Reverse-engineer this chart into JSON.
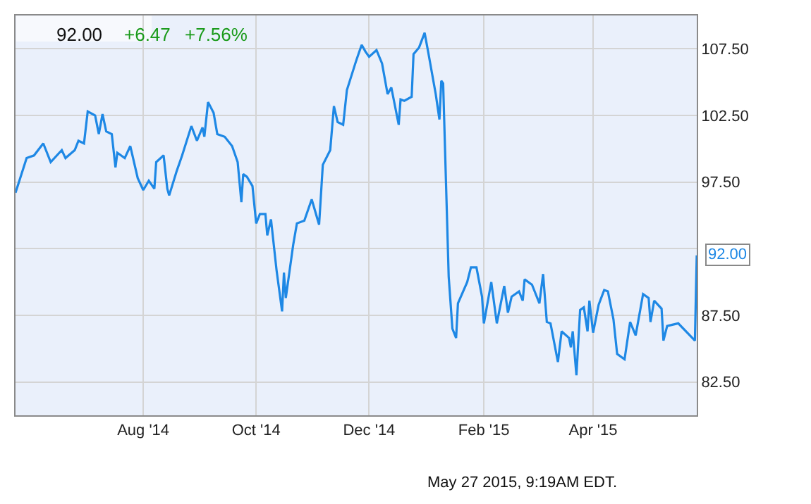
{
  "chart_data": {
    "type": "line",
    "title": "92.00",
    "annotations": [
      "+6.47",
      "+7.56%",
      "May 27 2015, 9:19AM EDT.",
      {
        "text": "92.00",
        "x": "2015-05-27",
        "y": 92.0
      }
    ],
    "x": [
      "2014-05-24",
      "2014-05-30",
      "2014-06-03",
      "2014-06-08",
      "2014-06-12",
      "2014-06-18",
      "2014-06-20",
      "2014-06-25",
      "2014-06-27",
      "2014-06-30",
      "2014-07-02",
      "2014-07-06",
      "2014-07-08",
      "2014-07-10",
      "2014-07-12",
      "2014-07-15",
      "2014-07-17",
      "2014-07-18",
      "2014-07-22",
      "2014-07-25",
      "2014-07-29",
      "2014-08-01",
      "2014-08-04",
      "2014-08-07",
      "2014-08-08",
      "2014-08-12",
      "2014-08-14",
      "2014-08-15",
      "2014-08-19",
      "2014-08-22",
      "2014-08-27",
      "2014-08-30",
      "2014-09-02",
      "2014-09-03",
      "2014-09-05",
      "2014-09-08",
      "2014-09-10",
      "2014-09-14",
      "2014-09-18",
      "2014-09-21",
      "2014-09-23",
      "2014-09-24",
      "2014-09-26",
      "2014-09-29",
      "2014-10-01",
      "2014-10-03",
      "2014-10-06",
      "2014-10-07",
      "2014-10-09",
      "2014-10-12",
      "2014-10-15",
      "2014-10-16",
      "2014-10-17",
      "2014-10-21",
      "2014-10-23",
      "2014-10-27",
      "2014-10-31",
      "2014-11-04",
      "2014-11-06",
      "2014-11-10",
      "2014-11-12",
      "2014-11-14",
      "2014-11-17",
      "2014-11-19",
      "2014-11-24",
      "2014-11-27",
      "2014-11-29",
      "2014-12-01",
      "2014-12-05",
      "2014-12-08",
      "2014-12-11",
      "2014-12-13",
      "2014-12-17",
      "2014-12-18",
      "2014-12-20",
      "2014-12-24",
      "2014-12-25",
      "2014-12-28",
      "2014-12-31",
      "2015-01-02",
      "2015-01-06",
      "2015-01-08",
      "2015-01-09",
      "2015-01-10",
      "2015-01-13",
      "2015-01-15",
      "2015-01-17",
      "2015-01-18",
      "2015-01-23",
      "2015-01-25",
      "2015-01-28",
      "2015-01-31",
      "2015-02-01",
      "2015-02-05",
      "2015-02-08",
      "2015-02-12",
      "2015-02-14",
      "2015-02-16",
      "2015-02-20",
      "2015-02-22",
      "2015-02-23",
      "2015-02-27",
      "2015-03-03",
      "2015-03-05",
      "2015-03-07",
      "2015-03-09",
      "2015-03-13",
      "2015-03-15",
      "2015-03-19",
      "2015-03-20",
      "2015-03-21",
      "2015-03-23",
      "2015-03-25",
      "2015-03-27",
      "2015-03-29",
      "2015-03-30",
      "2015-04-01",
      "2015-04-04",
      "2015-04-07",
      "2015-04-09",
      "2015-04-12",
      "2015-04-14",
      "2015-04-18",
      "2015-04-21",
      "2015-04-24",
      "2015-04-28",
      "2015-05-01",
      "2015-05-02",
      "2015-05-04",
      "2015-05-08",
      "2015-05-09",
      "2015-05-11",
      "2015-05-17",
      "2015-05-26",
      "2015-05-27"
    ],
    "series": [
      {
        "color": "#1e88e5",
        "values": [
          96.7,
          99.3,
          99.5,
          100.4,
          99.0,
          99.9,
          99.3,
          99.9,
          100.6,
          100.4,
          102.8,
          102.5,
          101.1,
          102.6,
          101.3,
          101.1,
          98.6,
          99.7,
          99.3,
          100.2,
          97.8,
          96.9,
          97.6,
          97.0,
          99.0,
          99.5,
          97.0,
          96.5,
          98.3,
          99.5,
          101.7,
          100.6,
          101.6,
          100.9,
          103.5,
          102.7,
          101.1,
          100.9,
          100.2,
          99.0,
          96.0,
          98.1,
          97.9,
          97.2,
          94.4,
          95.1,
          95.1,
          93.5,
          94.7,
          90.9,
          87.8,
          90.7,
          88.8,
          92.8,
          94.4,
          94.6,
          96.2,
          94.3,
          98.8,
          99.9,
          103.2,
          102.0,
          101.8,
          104.4,
          106.6,
          107.8,
          107.3,
          106.9,
          107.4,
          106.4,
          104.1,
          104.6,
          101.8,
          103.7,
          103.6,
          103.9,
          107.1,
          107.6,
          108.7,
          107.2,
          104.1,
          102.2,
          105.1,
          104.9,
          90.4,
          86.5,
          85.8,
          88.4,
          90.0,
          91.1,
          91.1,
          88.9,
          86.9,
          90.0,
          86.9,
          89.7,
          87.7,
          88.9,
          89.3,
          88.6,
          90.2,
          89.8,
          88.4,
          90.6,
          87.0,
          86.9,
          84.0,
          86.3,
          85.8,
          85.1,
          86.3,
          83.0,
          87.9,
          88.1,
          86.3,
          88.6,
          86.2,
          88.3,
          89.4,
          89.3,
          87.2,
          84.6,
          84.2,
          87.0,
          86.0,
          89.1,
          88.8,
          87.0,
          88.6,
          88.0,
          85.6,
          86.7,
          86.9,
          85.6,
          92.0
        ]
      }
    ],
    "xlim": [
      "2014-05-24",
      "2015-05-27"
    ],
    "xticks": [
      {
        "value": "2014-08-01",
        "label": "Aug '14"
      },
      {
        "value": "2014-10-01",
        "label": "Oct '14"
      },
      {
        "value": "2014-12-01",
        "label": "Dec '14"
      },
      {
        "value": "2015-02-01",
        "label": "Feb '15"
      },
      {
        "value": "2015-04-01",
        "label": "Apr '15"
      }
    ],
    "ylim": [
      80,
      110
    ],
    "yticks": [
      {
        "value": 82.5,
        "label": "82.50"
      },
      {
        "value": 87.5,
        "label": "87.50"
      },
      {
        "value": 92.5,
        "label": null
      },
      {
        "value": 97.5,
        "label": "97.50"
      },
      {
        "value": 102.5,
        "label": "102.50"
      },
      {
        "value": 107.5,
        "label": "107.50"
      }
    ],
    "grid": true,
    "marker": "none",
    "line_style": "solid"
  }
}
